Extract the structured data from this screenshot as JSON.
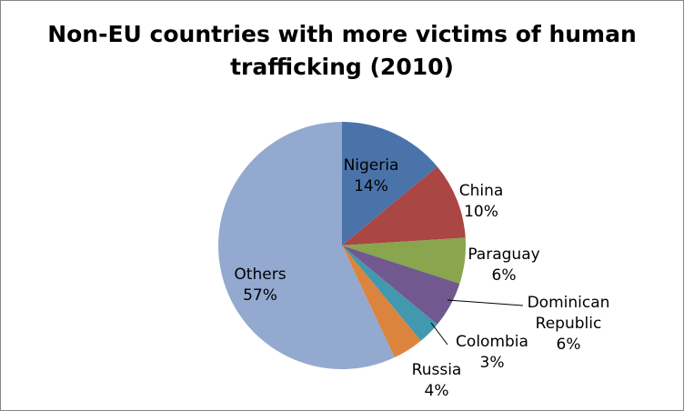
{
  "chart_data": {
    "type": "pie",
    "title_lines": [
      "Non-EU countries with more victims of human",
      "trafficking (2010)"
    ],
    "start_angle_deg": 0,
    "direction": "clockwise",
    "slices": [
      {
        "name": "Nigeria",
        "label_lines": [
          "Nigeria"
        ],
        "value": 14,
        "value_label": "14%",
        "color": "#4A73AA"
      },
      {
        "name": "China",
        "label_lines": [
          "China"
        ],
        "value": 10,
        "value_label": "10%",
        "color": "#AA4644"
      },
      {
        "name": "Paraguay",
        "label_lines": [
          "Paraguay"
        ],
        "value": 6,
        "value_label": "6%",
        "color": "#89A54E"
      },
      {
        "name": "Dominican Republic",
        "label_lines": [
          "Dominican",
          "Republic"
        ],
        "value": 6,
        "value_label": "6%",
        "color": "#71588F"
      },
      {
        "name": "Colombia",
        "label_lines": [
          "Colombia"
        ],
        "value": 3,
        "value_label": "3%",
        "color": "#4198AF"
      },
      {
        "name": "Russia",
        "label_lines": [
          "Russia"
        ],
        "value": 4,
        "value_label": "4%",
        "color": "#DB843D"
      },
      {
        "name": "Others",
        "label_lines": [
          "Others"
        ],
        "value": 57,
        "value_label": "57%",
        "color": "#93A9CF"
      }
    ]
  }
}
